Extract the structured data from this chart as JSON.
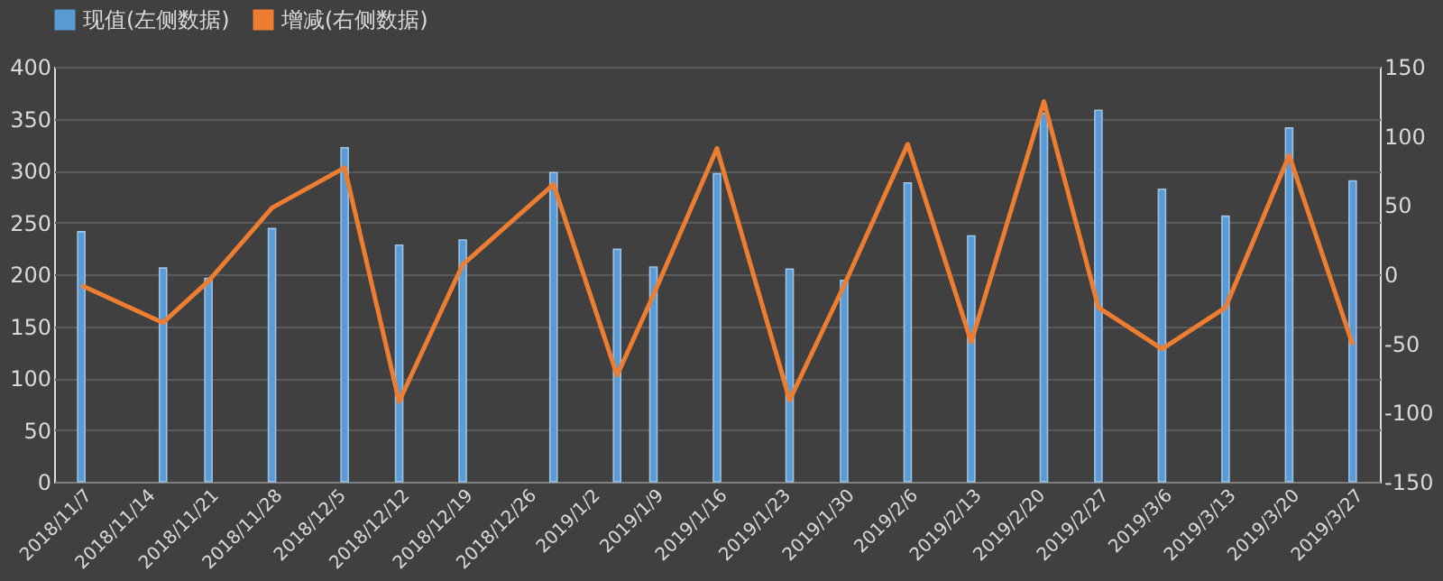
{
  "chart_data": {
    "type": "bar",
    "x": [
      "2018-11-07",
      "2018-11-16",
      "2018-11-21",
      "2018-11-28",
      "2018-12-06",
      "2018-12-12",
      "2018-12-19",
      "2018-12-29",
      "2019-01-05",
      "2019-01-09",
      "2019-01-16",
      "2019-01-24",
      "2019-01-30",
      "2019-02-06",
      "2019-02-13",
      "2019-02-21",
      "2019-02-27",
      "2019-03-06",
      "2019-03-13",
      "2019-03-20",
      "2019-03-27"
    ],
    "series": [
      {
        "name": "现值(左侧数据)",
        "color": "#5b9bd5",
        "values": [
          241,
          206,
          196,
          244,
          322,
          228,
          233,
          298,
          224,
          207,
          297,
          205,
          194,
          288,
          237,
          355,
          358,
          282,
          256,
          341,
          290
        ]
      },
      {
        "name": "增减(右侧数据)",
        "type": "line",
        "axis": "y2",
        "color": "#ed7d31",
        "values": [
          -8,
          -35,
          -5,
          48,
          77,
          -92,
          7,
          65,
          -73,
          -15,
          91,
          -91,
          -8,
          94,
          -49,
          125,
          -24,
          -54,
          -24,
          86,
          -51
        ]
      }
    ],
    "xlim": [
      "2018-11-05",
      "2019-03-29"
    ],
    "xticks": [
      {
        "value": "2018-11-07",
        "label": "2018/11/7"
      },
      {
        "value": "2018-11-14",
        "label": "2018/11/14"
      },
      {
        "value": "2018-11-21",
        "label": "2018/11/21"
      },
      {
        "value": "2018-11-28",
        "label": "2018/11/28"
      },
      {
        "value": "2018-12-05",
        "label": "2018/12/5"
      },
      {
        "value": "2018-12-12",
        "label": "2018/12/12"
      },
      {
        "value": "2018-12-19",
        "label": "2018/12/19"
      },
      {
        "value": "2018-12-26",
        "label": "2018/12/26"
      },
      {
        "value": "2019-01-02",
        "label": "2019/1/2"
      },
      {
        "value": "2019-01-09",
        "label": "2019/1/9"
      },
      {
        "value": "2019-01-16",
        "label": "2019/1/16"
      },
      {
        "value": "2019-01-23",
        "label": "2019/1/23"
      },
      {
        "value": "2019-01-30",
        "label": "2019/1/30"
      },
      {
        "value": "2019-02-06",
        "label": "2019/2/6"
      },
      {
        "value": "2019-02-13",
        "label": "2019/2/13"
      },
      {
        "value": "2019-02-20",
        "label": "2019/2/20"
      },
      {
        "value": "2019-02-27",
        "label": "2019/2/27"
      },
      {
        "value": "2019-03-06",
        "label": "2019/3/6"
      },
      {
        "value": "2019-03-13",
        "label": "2019/3/13"
      },
      {
        "value": "2019-03-20",
        "label": "2019/3/20"
      },
      {
        "value": "2019-03-27",
        "label": "2019/3/27"
      }
    ],
    "ylim": [
      0,
      400
    ],
    "yticks": [
      0,
      50,
      100,
      150,
      200,
      250,
      300,
      350,
      400
    ],
    "y2lim": [
      -150,
      150
    ],
    "y2ticks": [
      -150,
      -100,
      -50,
      0,
      50,
      100,
      150
    ],
    "grid": "y",
    "legend": "top",
    "marker": "none",
    "line_style": "solid"
  }
}
